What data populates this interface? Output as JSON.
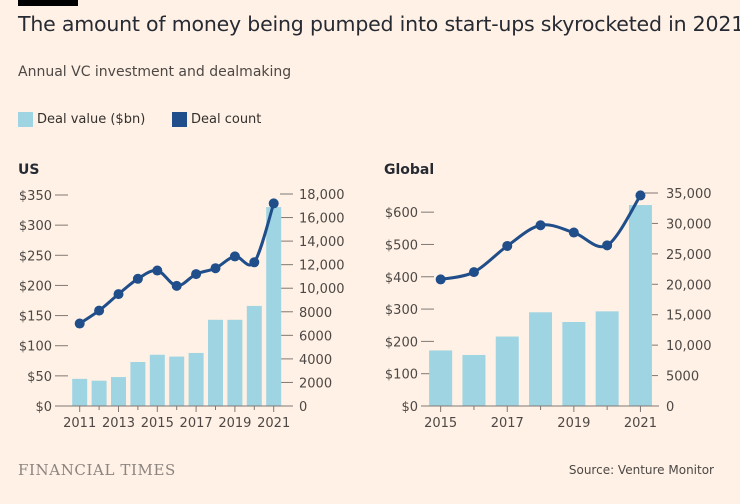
{
  "header": {
    "title": "The amount of money being pumped into start-ups skyrocketed in 2021",
    "subtitle": "Annual VC investment and dealmaking"
  },
  "legend": {
    "deal_value_label": "Deal value ($bn)",
    "deal_count_label": "Deal count"
  },
  "colors": {
    "background": "#fff1e5",
    "bar": "#9fd4e3",
    "line": "#1f4e8a",
    "axis": "#807973",
    "text": "#4d4845"
  },
  "footer": {
    "brand": "FINANCIAL TIMES",
    "source": "Source: Venture Monitor"
  },
  "chart_data": [
    {
      "type": "bar+line",
      "title": "US",
      "categories": [
        "2011",
        "2012",
        "2013",
        "2014",
        "2015",
        "2016",
        "2017",
        "2018",
        "2019",
        "2020",
        "2021"
      ],
      "x_tick_labels": [
        "2011",
        "2013",
        "2015",
        "2017",
        "2019",
        "2021"
      ],
      "series": [
        {
          "name": "Deal value ($bn)",
          "type": "bar",
          "axis": "left",
          "values": [
            45,
            42,
            48,
            73,
            85,
            82,
            88,
            143,
            143,
            166,
            330
          ]
        },
        {
          "name": "Deal count",
          "type": "line",
          "axis": "right",
          "values": [
            7000,
            8100,
            9500,
            10800,
            11500,
            10200,
            11200,
            11700,
            12700,
            12200,
            17200
          ]
        }
      ],
      "left_axis": {
        "min": 0,
        "max": 350,
        "ticks": [
          0,
          50,
          100,
          150,
          200,
          250,
          300,
          350
        ],
        "tick_labels": [
          "$0",
          "$50",
          "$100",
          "$150",
          "$200",
          "$250",
          "$300",
          "$350"
        ]
      },
      "right_axis": {
        "min": 0,
        "max": 18000,
        "ticks": [
          0,
          2000,
          4000,
          6000,
          8000,
          10000,
          12000,
          14000,
          16000,
          18000
        ],
        "tick_labels": [
          "0",
          "2000",
          "4000",
          "6000",
          "8000",
          "10,000",
          "12,000",
          "14,000",
          "16,000",
          "18,000"
        ]
      }
    },
    {
      "type": "bar+line",
      "title": "Global",
      "categories": [
        "2015",
        "2016",
        "2017",
        "2018",
        "2019",
        "2020",
        "2021"
      ],
      "x_tick_labels": [
        "2015",
        "2017",
        "2019",
        "2021"
      ],
      "series": [
        {
          "name": "Deal value ($bn)",
          "type": "bar",
          "axis": "left",
          "values": [
            172,
            158,
            215,
            290,
            260,
            293,
            622
          ]
        },
        {
          "name": "Deal count",
          "type": "line",
          "axis": "right",
          "values": [
            20800,
            22000,
            26300,
            29700,
            28500,
            26400,
            34600
          ]
        }
      ],
      "left_axis": {
        "min": 0,
        "max": 650,
        "ticks": [
          0,
          100,
          200,
          300,
          400,
          500,
          600
        ],
        "tick_labels": [
          "$0",
          "$100",
          "$200",
          "$300",
          "$400",
          "$500",
          "$600"
        ]
      },
      "right_axis": {
        "min": 0,
        "max": 35000,
        "ticks": [
          0,
          5000,
          10000,
          15000,
          20000,
          25000,
          30000,
          35000
        ],
        "tick_labels": [
          "0",
          "5000",
          "10,000",
          "15,000",
          "20,000",
          "25,000",
          "30,000",
          "35,000"
        ]
      }
    }
  ]
}
